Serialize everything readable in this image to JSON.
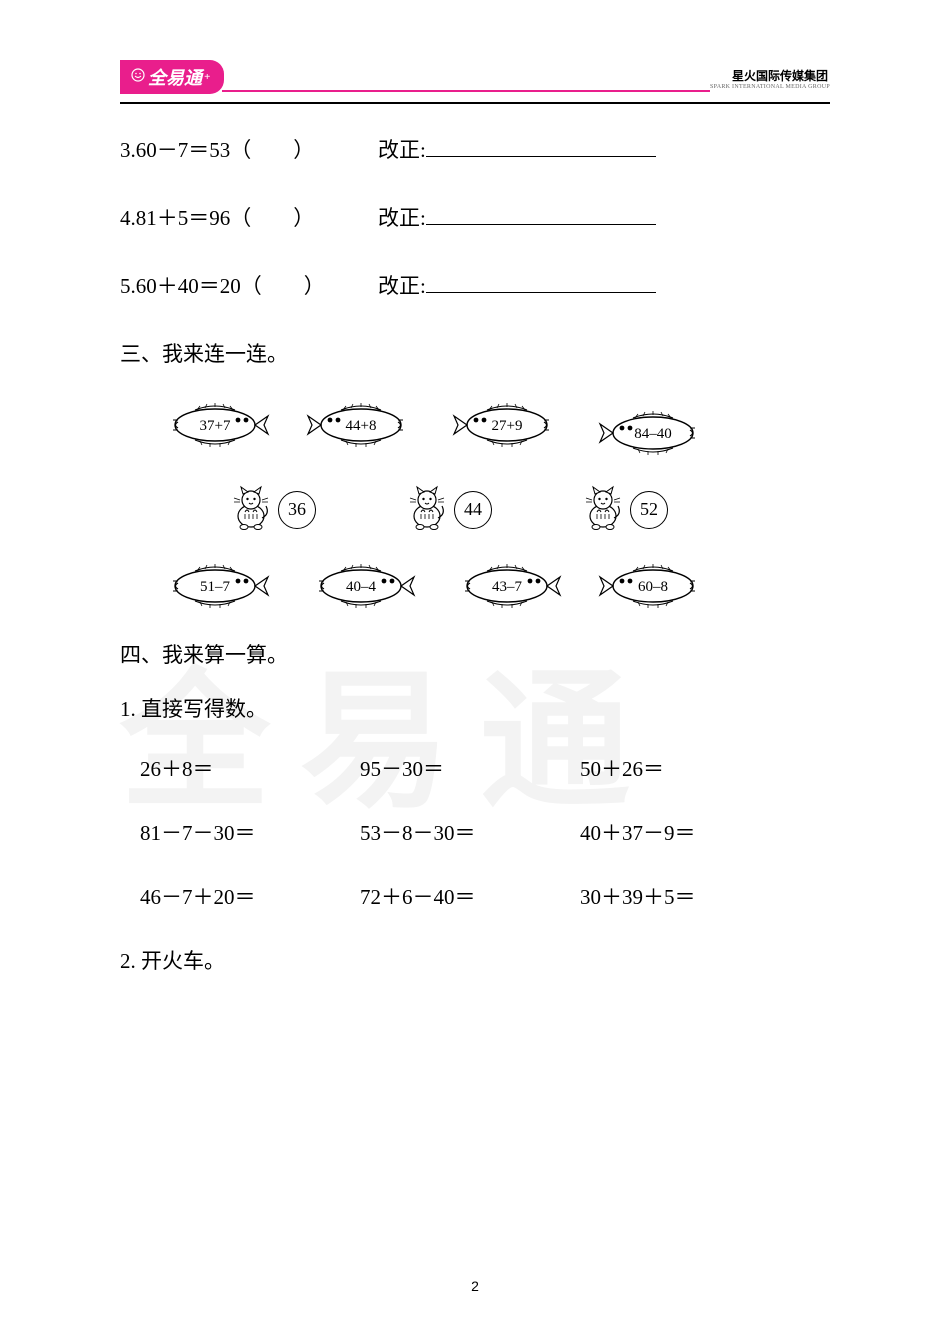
{
  "header": {
    "logo_text": "全易通",
    "logo_sup": "+",
    "company": "星火国际传媒集团",
    "company_sub": "SPARK INTERNATIONAL MEDIA GROUP"
  },
  "problems": [
    {
      "expr": "3.60－7＝53（　　）",
      "corr_label": "改正:"
    },
    {
      "expr": "4.81＋5＝96（　　）",
      "corr_label": "改正:"
    },
    {
      "expr": "5.60＋40＝20（　　）",
      "corr_label": "改正:"
    }
  ],
  "section3_title": "三、我来连一连。",
  "match": {
    "fish_top": [
      "37+7",
      "44+8",
      "27+9",
      "84–40"
    ],
    "cats": [
      "36",
      "44",
      "52"
    ],
    "fish_bottom": [
      "51–7",
      "40–4",
      "43–7",
      "60–8"
    ]
  },
  "section4_title": "四、我来算一算。",
  "sub1_title": "1. 直接写得数。",
  "calc_rows": [
    [
      "26＋8＝",
      "95－30＝",
      "50＋26＝"
    ],
    [
      "81－7－30＝",
      "53－8－30＝",
      "40＋37－9＝"
    ],
    [
      "46－7＋20＝",
      "72＋6－40＝",
      "30＋39＋5＝"
    ]
  ],
  "sub2_title": "2. 开火车。",
  "page_number": "2",
  "watermark": "全易通"
}
